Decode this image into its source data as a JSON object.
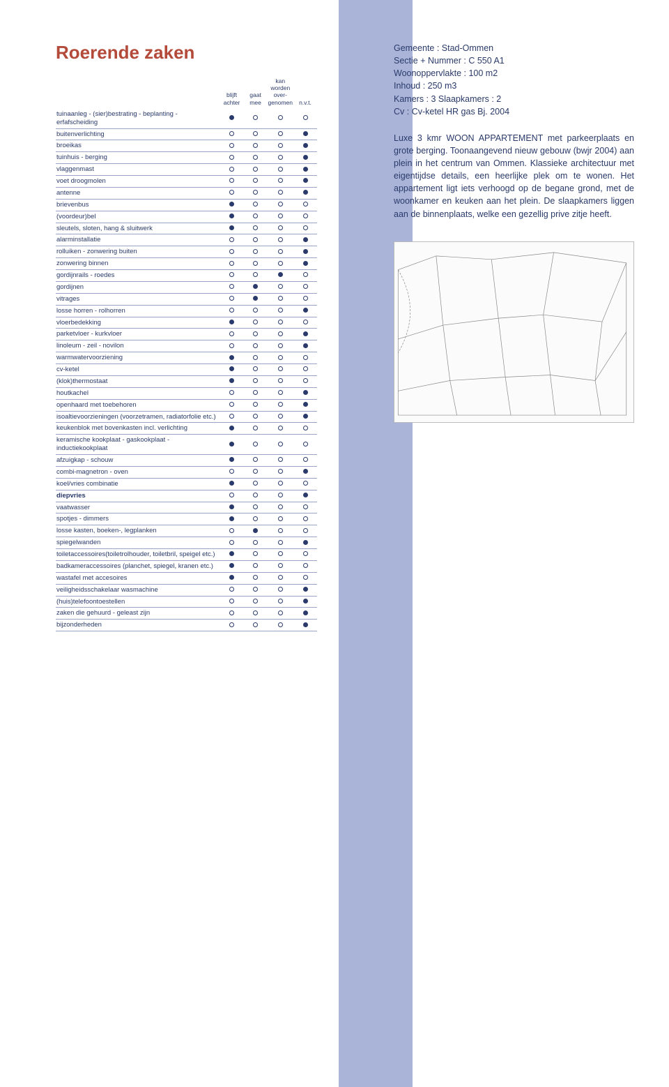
{
  "title": "Roerende zaken",
  "columns": [
    "blijft achter",
    "gaat mee",
    "kan worden over-\ngenomen",
    "n.v.t."
  ],
  "rows": [
    {
      "label": "tuinaanleg - (sier)bestrating - beplanting - erfafscheiding",
      "sel": 0
    },
    {
      "label": "buitenverlichting",
      "sel": 3
    },
    {
      "label": "broeikas",
      "sel": 3
    },
    {
      "label": "tuinhuis - berging",
      "sel": 3
    },
    {
      "label": "vlaggenmast",
      "sel": 3
    },
    {
      "label": "voet droogmolen",
      "sel": 3
    },
    {
      "label": "antenne",
      "sel": 3
    },
    {
      "label": "brievenbus",
      "sel": 0
    },
    {
      "label": "(voordeur)bel",
      "sel": 0
    },
    {
      "label": "sleutels, sloten, hang & sluitwerk",
      "sel": 0
    },
    {
      "label": "alarminstallatie",
      "sel": 3
    },
    {
      "label": "rolluiken - zonwering buiten",
      "sel": 3
    },
    {
      "label": "zonwering binnen",
      "sel": 3
    },
    {
      "label": "gordijnrails - roedes",
      "sel": 2
    },
    {
      "label": "gordijnen",
      "sel": 1
    },
    {
      "label": "vitrages",
      "sel": 1
    },
    {
      "label": "losse horren - rolhorren",
      "sel": 3
    },
    {
      "label": "vloerbedekking",
      "sel": 0
    },
    {
      "label": "parketvloer - kurkvloer",
      "sel": 3
    },
    {
      "label": "linoleum - zeil - novilon",
      "sel": 3
    },
    {
      "label": "warmwatervoorziening",
      "sel": 0
    },
    {
      "label": "cv-ketel",
      "sel": 0
    },
    {
      "label": "(klok)thermostaat",
      "sel": 0
    },
    {
      "label": "houtkachel",
      "sel": 3
    },
    {
      "label": "openhaard met toebehoren",
      "sel": 3
    },
    {
      "label": "isoaltievoorzieningen (voorzetramen, radiatorfolie etc.)",
      "sel": 3
    },
    {
      "label": "keukenblok met bovenkasten incl. verlichting",
      "sel": 0
    },
    {
      "label": "keramische kookplaat - gaskookplaat - inductiekookplaat",
      "sel": 0
    },
    {
      "label": "afzuigkap - schouw",
      "sel": 0
    },
    {
      "label": "combi-magnetron - oven",
      "sel": 3
    },
    {
      "label": "koel/vries combinatie",
      "sel": 0
    },
    {
      "label": "diepvries",
      "sel": 3,
      "strong": true
    },
    {
      "label": "vaatwasser",
      "sel": 0
    },
    {
      "label": "spotjes - dimmers",
      "sel": 0
    },
    {
      "label": "losse kasten, boeken-, legplanken",
      "sel": 1
    },
    {
      "label": "spiegelwanden",
      "sel": 3
    },
    {
      "label": "toiletaccessoires(toiletrolhouder, toiletbril, speigel etc.)",
      "sel": 0
    },
    {
      "label": "badkameraccessoires (planchet, spiegel, kranen etc.)",
      "sel": 0
    },
    {
      "label": "wastafel met accesoires",
      "sel": 0
    },
    {
      "label": "veiligheidsschakelaar wasmachine",
      "sel": 3
    },
    {
      "label": "(huis)telefoontoestellen",
      "sel": 3
    },
    {
      "label": "zaken die gehuurd - geleast zijn",
      "sel": 3
    },
    {
      "label": "bijzonderheden",
      "sel": 3
    }
  ],
  "info": [
    "Gemeente : Stad-Ommen",
    "Sectie + Nummer : C 550 A1",
    "Woonoppervlakte : 100 m2",
    "Inhoud : 250 m3",
    "Kamers : 3 Slaapkamers : 2",
    "Cv : Cv-ketel HR gas Bj. 2004"
  ],
  "description": "Luxe 3 kmr WOON APPARTEMENT met parkeerplaats en grote berging. Toonaangevend nieuw gebouw (bwjr 2004) aan plein in het centrum van Ommen. Klassieke architectuur met eigentijdse details, een heerlijke plek om te wonen. Het appartement ligt iets verhoogd op de begane grond, met de woonkamer en keuken aan het plein. De slaapkamers liggen aan de binnenplaats, welke een gezellig prive zitje heeft.",
  "colors": {
    "text": "#2a3a6a",
    "accent_title": "#b34a3a",
    "band": "#aab4d8",
    "rule": "#9aa5c5"
  }
}
